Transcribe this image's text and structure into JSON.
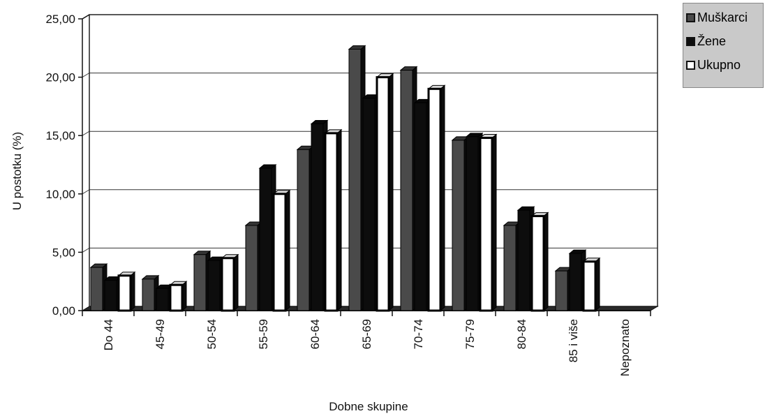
{
  "chart_data": {
    "type": "bar",
    "title": "",
    "xlabel": "Dobne skupine",
    "ylabel": "U postotku (%)",
    "ylim": [
      0,
      25
    ],
    "yticks": [
      "0,00",
      "5,00",
      "10,00",
      "15,00",
      "20,00",
      "25,00"
    ],
    "grid": true,
    "legend_position": "top-right",
    "categories": [
      "Do 44",
      "45-49",
      "50-54",
      "55-59",
      "60-64",
      "65-69",
      "70-74",
      "75-79",
      "80-84",
      "85 i više",
      "Nepoznato"
    ],
    "series": [
      {
        "name": "Muškarci",
        "color": "#4a4a4a",
        "values": [
          3.7,
          2.7,
          4.8,
          7.3,
          13.8,
          22.4,
          20.6,
          14.6,
          7.3,
          3.4,
          0.0
        ]
      },
      {
        "name": "Žene",
        "color": "#0d0d0d",
        "values": [
          2.6,
          1.9,
          4.3,
          12.2,
          16.0,
          18.2,
          17.8,
          14.9,
          8.6,
          4.9,
          0.0
        ]
      },
      {
        "name": "Ukupno",
        "color": "#ffffff",
        "values": [
          3.0,
          2.2,
          4.5,
          10.0,
          15.2,
          20.0,
          19.0,
          14.8,
          8.1,
          4.2,
          0.0
        ]
      }
    ]
  }
}
